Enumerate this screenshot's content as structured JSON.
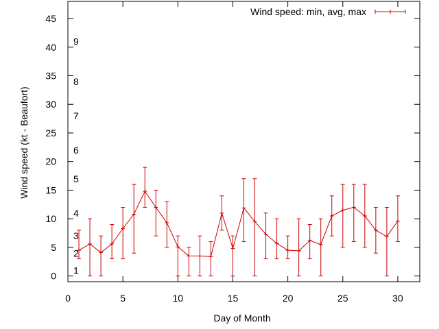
{
  "chart_data": {
    "type": "line",
    "xlabel": "Day of Month",
    "ylabel": "Wind speed (kt - Beaufort)",
    "xlim": [
      0,
      32
    ],
    "ylim": [
      -1,
      48
    ],
    "xticks": [
      "0",
      "5",
      "10",
      "15",
      "20",
      "25",
      "30"
    ],
    "yticks": [
      "0",
      "5",
      "10",
      "15",
      "20",
      "25",
      "30",
      "35",
      "40",
      "45"
    ],
    "beaufort_scale": [
      {
        "label": "1",
        "value": 1
      },
      {
        "label": "2",
        "value": 4
      },
      {
        "label": "3",
        "value": 7
      },
      {
        "label": "4",
        "value": 11
      },
      {
        "label": "5",
        "value": 17
      },
      {
        "label": "6",
        "value": 22
      },
      {
        "label": "7",
        "value": 28
      },
      {
        "label": "8",
        "value": 34
      },
      {
        "label": "9",
        "value": 41
      }
    ],
    "legend": {
      "label": "Wind speed: min, avg, max",
      "position": "top-right"
    },
    "grid": false,
    "series": [
      {
        "name": "Wind speed: min, avg, max",
        "color": "#cc0000",
        "x": [
          1,
          2,
          3,
          4,
          5,
          6,
          7,
          8,
          9,
          10,
          11,
          12,
          13,
          14,
          15,
          16,
          17,
          18,
          19,
          20,
          21,
          22,
          23,
          24,
          25,
          26,
          27,
          28,
          29,
          30
        ],
        "avg": [
          4.5,
          5.6,
          4.1,
          5.6,
          8.3,
          10.8,
          14.8,
          12.0,
          9.3,
          5.1,
          3.5,
          3.5,
          3.4,
          11.0,
          4.8,
          11.9,
          9.5,
          7.3,
          5.7,
          4.5,
          4.4,
          6.2,
          5.5,
          10.5,
          11.5,
          12.0,
          10.5,
          8.0,
          6.9,
          9.6
        ],
        "min": [
          3,
          0,
          0,
          3,
          3,
          4,
          12,
          7,
          5,
          0,
          0,
          0,
          0,
          8,
          0,
          6,
          0,
          3,
          3,
          3,
          0,
          3,
          0,
          7,
          5,
          6,
          5,
          4,
          0,
          6
        ],
        "max": [
          8,
          10,
          7,
          9,
          12,
          16,
          19,
          15,
          13,
          7,
          5,
          7,
          6,
          14,
          7,
          17,
          17,
          11,
          10,
          7,
          10,
          9,
          10,
          14,
          16,
          16,
          16,
          12,
          12,
          14
        ]
      }
    ]
  }
}
